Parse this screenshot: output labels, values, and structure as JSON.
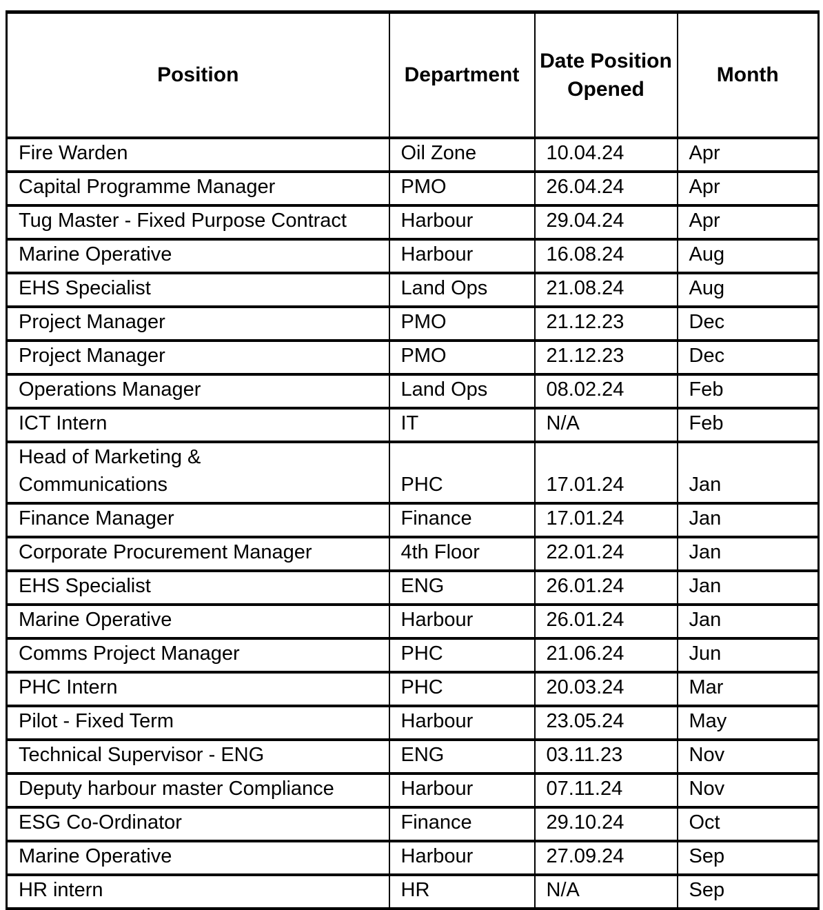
{
  "table": {
    "columns": [
      {
        "label": "Position"
      },
      {
        "label": "Department"
      },
      {
        "label": "Date Position Opened"
      },
      {
        "label": "Month"
      }
    ],
    "rows": [
      [
        "Fire Warden",
        "Oil Zone",
        "10.04.24",
        "Apr"
      ],
      [
        "Capital Programme Manager",
        "PMO",
        "26.04.24",
        "Apr"
      ],
      [
        "Tug Master - Fixed Purpose Contract",
        "Harbour",
        "29.04.24",
        "Apr"
      ],
      [
        "Marine Operative",
        "Harbour",
        "16.08.24",
        "Aug"
      ],
      [
        "EHS Specialist",
        "Land Ops",
        "21.08.24",
        "Aug"
      ],
      [
        "Project Manager",
        "PMO",
        "21.12.23",
        "Dec"
      ],
      [
        "Project Manager",
        "PMO",
        "21.12.23",
        "Dec"
      ],
      [
        "Operations Manager",
        "Land Ops",
        "08.02.24",
        "Feb"
      ],
      [
        "ICT Intern",
        "IT",
        "N/A",
        "Feb"
      ],
      [
        "Head of Marketing &\nCommunications",
        "PHC",
        "17.01.24",
        "Jan"
      ],
      [
        "Finance Manager",
        "Finance",
        "17.01.24",
        "Jan"
      ],
      [
        "Corporate Procurement Manager",
        "4th Floor",
        "22.01.24",
        "Jan"
      ],
      [
        "EHS Specialist",
        "ENG",
        "26.01.24",
        "Jan"
      ],
      [
        "Marine Operative",
        "Harbour",
        "26.01.24",
        "Jan"
      ],
      [
        "Comms Project Manager",
        "PHC",
        "21.06.24",
        "Jun"
      ],
      [
        "PHC Intern",
        "PHC",
        "20.03.24",
        "Mar"
      ],
      [
        "Pilot - Fixed Term",
        "Harbour",
        "23.05.24",
        "May"
      ],
      [
        "Technical Supervisor - ENG",
        "ENG",
        "03.11.23",
        "Nov"
      ],
      [
        "Deputy harbour master Compliance",
        "Harbour",
        "07.11.24",
        "Nov"
      ],
      [
        "ESG Co-Ordinator",
        "Finance",
        "29.10.24",
        "Oct"
      ],
      [
        "Marine Operative",
        "Harbour",
        "27.09.24",
        "Sep"
      ],
      [
        "HR intern",
        "HR",
        "N/A",
        "Sep"
      ]
    ],
    "colors": {
      "border": "#000000",
      "background": "#ffffff",
      "text": "#000000"
    }
  }
}
